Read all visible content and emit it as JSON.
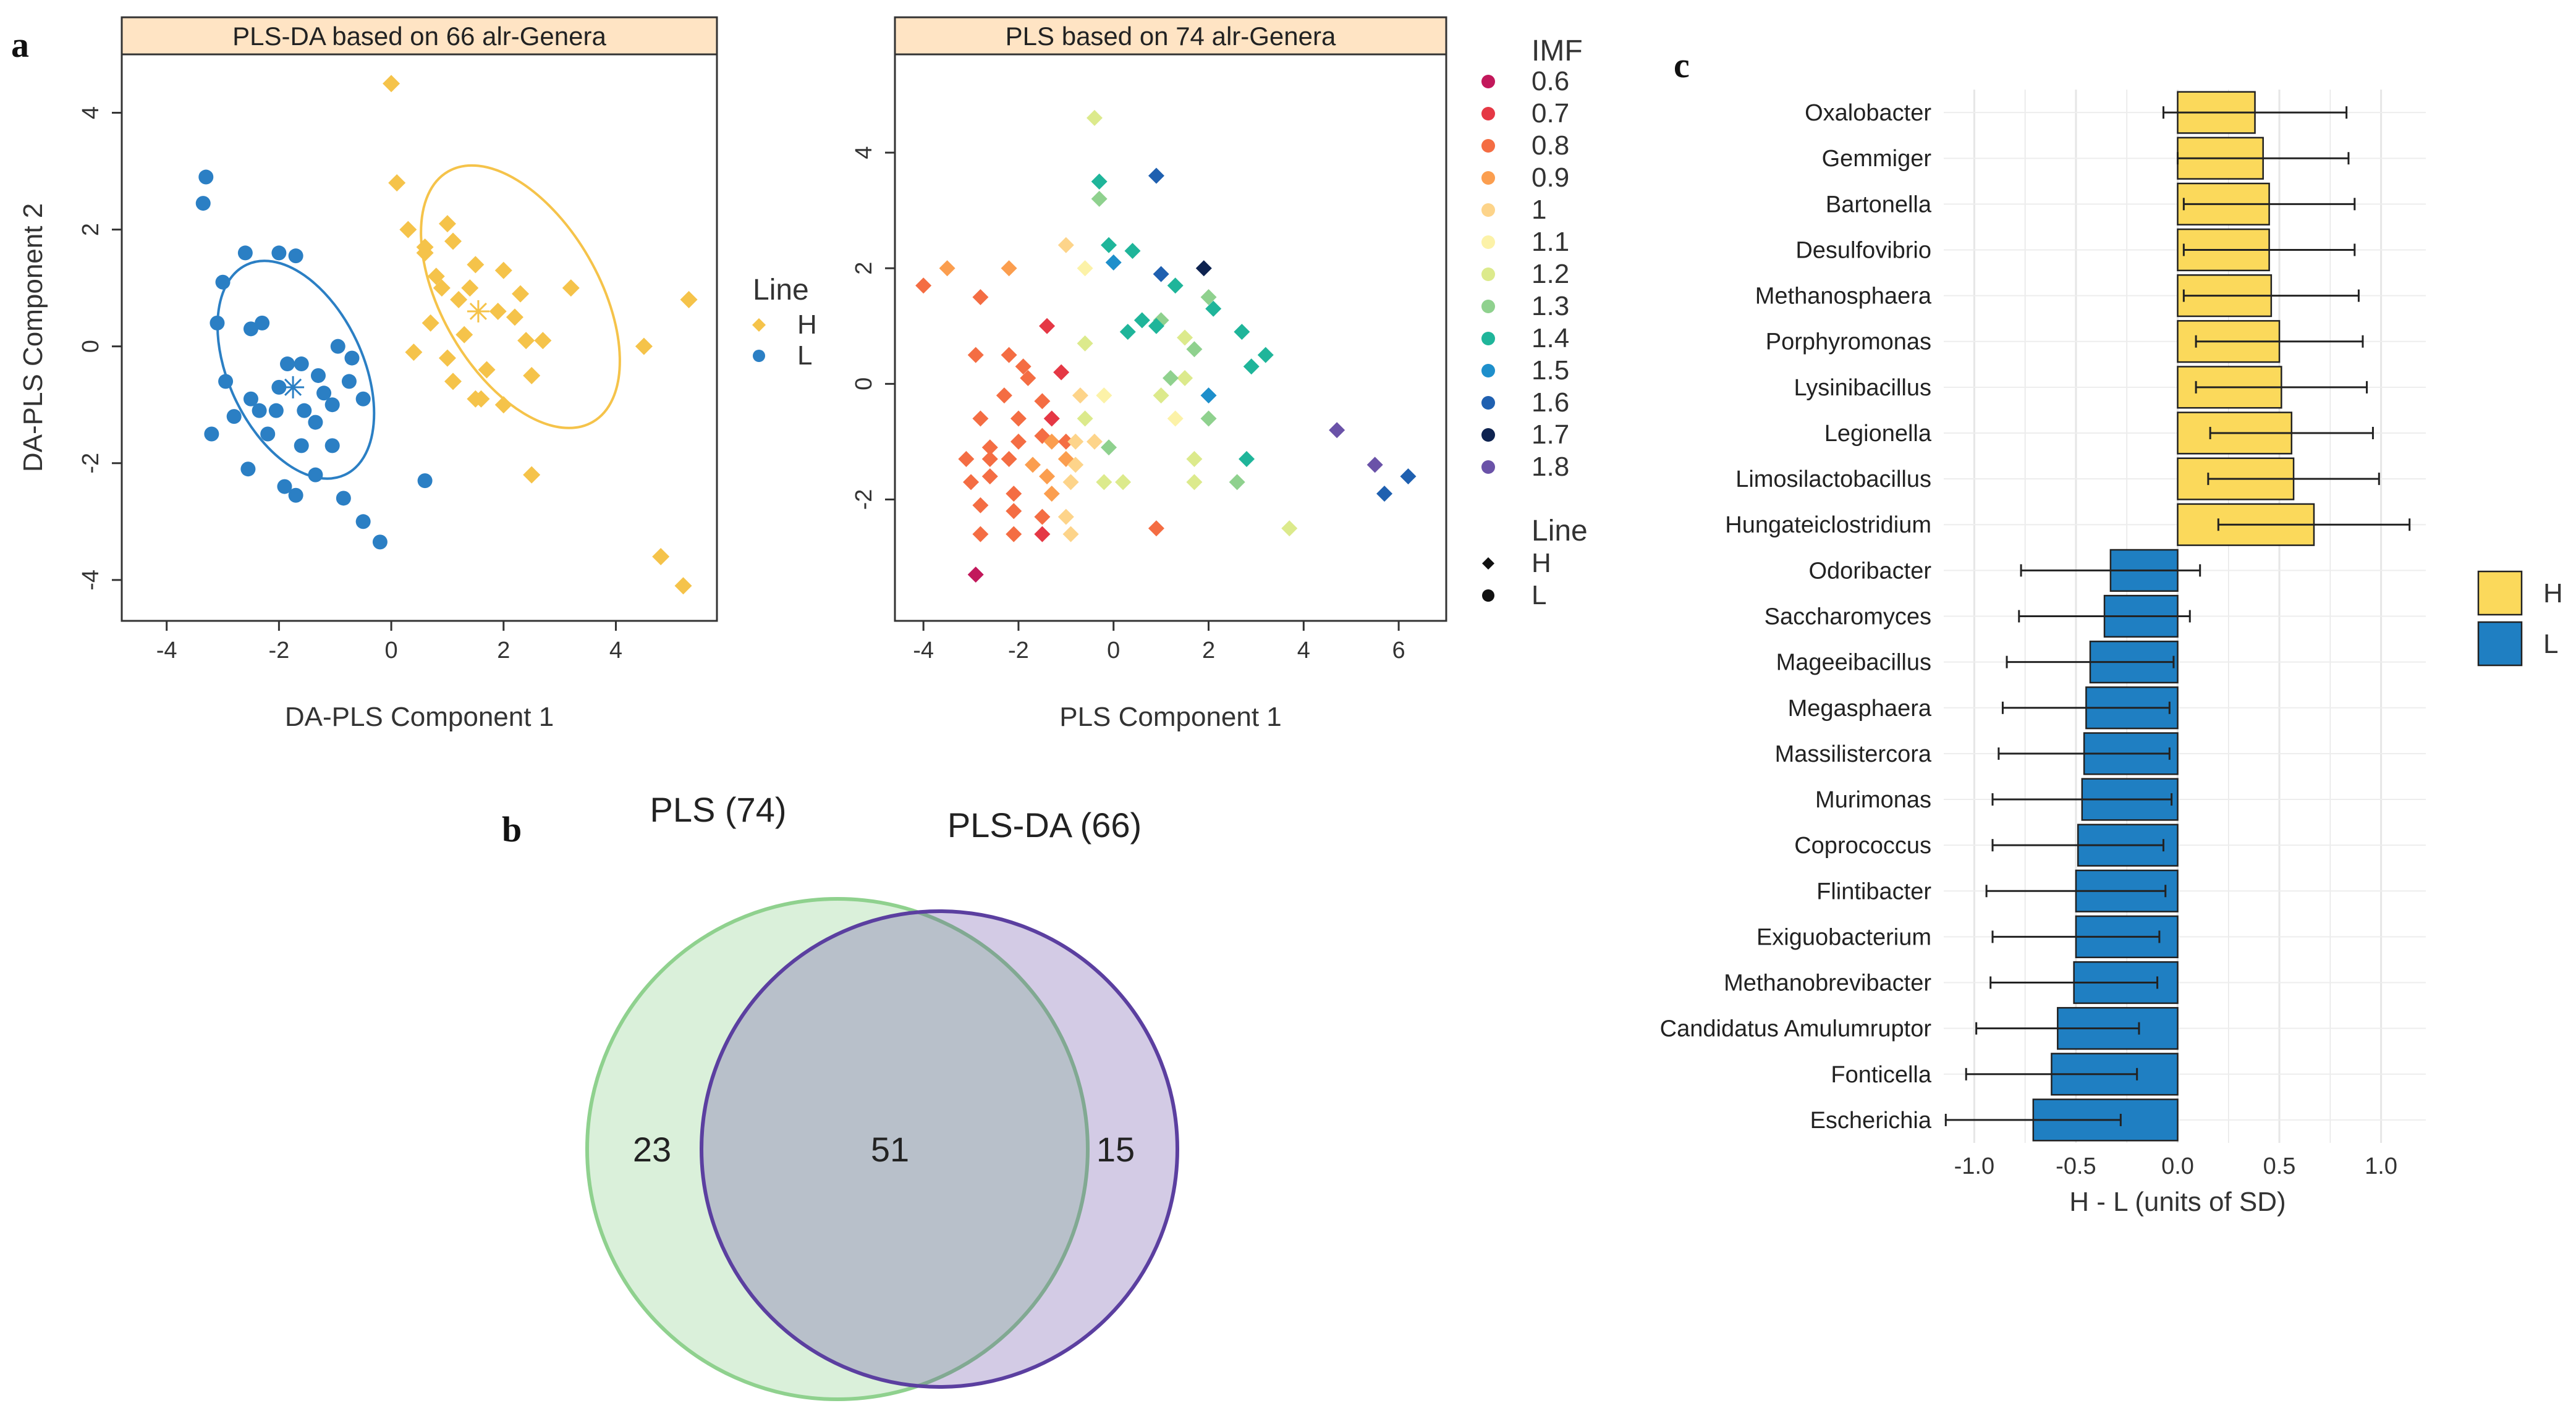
{
  "panel_letters": {
    "a": "a",
    "b": "b",
    "c": "c"
  },
  "chart_data": [
    {
      "type": "scatter",
      "strip_title": "PLS-DA based on 66 alr-Genera",
      "xlabel": "DA-PLS Component 1",
      "ylabel": "DA-PLS Component 2",
      "xlim": [
        -4.8,
        5.8
      ],
      "ylim": [
        -4.7,
        5.0
      ],
      "xticks": [
        -4,
        -2,
        0,
        2,
        4
      ],
      "yticks": [
        -4,
        -2,
        0,
        2,
        4
      ],
      "legend": {
        "title": "Line",
        "entries": [
          {
            "label": "H",
            "color": "#F5C34A",
            "shape": "diamond"
          },
          {
            "label": "L",
            "color": "#2B7FC4",
            "shape": "circle"
          }
        ]
      },
      "centroids": {
        "H": [
          1.55,
          0.6
        ],
        "L": [
          -1.75,
          -0.7
        ]
      },
      "ellipses": [
        {
          "group": "H",
          "center": [
            2.3,
            0.85
          ],
          "rx": 2.75,
          "ry": 5.05,
          "angle_deg": -30,
          "color": "#F5C34A"
        },
        {
          "group": "L",
          "center": [
            -1.7,
            -0.4
          ],
          "rx": 2.35,
          "ry": 4.05,
          "angle_deg": -25,
          "color": "#2B7FC4"
        }
      ],
      "series": [
        {
          "name": "H",
          "color": "#F5C34A",
          "points": [
            [
              0,
              4.5
            ],
            [
              0.1,
              2.8
            ],
            [
              1.0,
              2.1
            ],
            [
              0.6,
              1.7
            ],
            [
              1.5,
              1.4
            ],
            [
              1.1,
              1.8
            ],
            [
              2.0,
              1.3
            ],
            [
              0.9,
              1.0
            ],
            [
              1.2,
              0.8
            ],
            [
              2.2,
              0.5
            ],
            [
              3.2,
              1.0
            ],
            [
              1.9,
              0.6
            ],
            [
              0.7,
              0.4
            ],
            [
              1.3,
              0.2
            ],
            [
              2.4,
              0.1
            ],
            [
              0.4,
              -0.1
            ],
            [
              1.0,
              -0.2
            ],
            [
              1.7,
              -0.4
            ],
            [
              2.5,
              -0.5
            ],
            [
              1.6,
              -0.9
            ],
            [
              2.0,
              -1.0
            ],
            [
              1.5,
              -0.9
            ],
            [
              4.5,
              0.0
            ],
            [
              5.3,
              0.8
            ],
            [
              2.5,
              -2.2
            ],
            [
              4.8,
              -3.6
            ],
            [
              5.2,
              -4.1
            ],
            [
              0.3,
              2.0
            ],
            [
              0.8,
              1.2
            ],
            [
              1.4,
              1.0
            ],
            [
              2.3,
              0.9
            ],
            [
              2.7,
              0.1
            ],
            [
              1.1,
              -0.6
            ],
            [
              0.6,
              1.6
            ]
          ]
        },
        {
          "name": "L",
          "color": "#2B7FC4",
          "points": [
            [
              -3.3,
              2.9
            ],
            [
              -3.35,
              2.45
            ],
            [
              -2.6,
              1.6
            ],
            [
              -2.0,
              1.6
            ],
            [
              -1.7,
              1.55
            ],
            [
              -3.0,
              1.1
            ],
            [
              -3.1,
              0.4
            ],
            [
              -2.5,
              0.3
            ],
            [
              -2.3,
              0.4
            ],
            [
              -1.85,
              -0.3
            ],
            [
              -1.6,
              -0.3
            ],
            [
              -0.95,
              0.0
            ],
            [
              -0.7,
              -0.2
            ],
            [
              -1.3,
              -0.5
            ],
            [
              -2.0,
              -0.7
            ],
            [
              -2.5,
              -0.9
            ],
            [
              -2.95,
              -0.6
            ],
            [
              -2.35,
              -1.1
            ],
            [
              -2.05,
              -1.1
            ],
            [
              -1.55,
              -1.1
            ],
            [
              -1.05,
              -1.0
            ],
            [
              -0.75,
              -0.6
            ],
            [
              -0.5,
              -0.9
            ],
            [
              -1.35,
              -1.3
            ],
            [
              -1.05,
              -1.7
            ],
            [
              -1.6,
              -1.7
            ],
            [
              -2.2,
              -1.5
            ],
            [
              -3.2,
              -1.5
            ],
            [
              -2.55,
              -2.1
            ],
            [
              -1.9,
              -2.4
            ],
            [
              -1.35,
              -2.2
            ],
            [
              -0.85,
              -2.6
            ],
            [
              -1.7,
              -2.55
            ],
            [
              -0.5,
              -3.0
            ],
            [
              -0.2,
              -3.35
            ],
            [
              0.6,
              -2.3
            ],
            [
              -2.8,
              -1.2
            ],
            [
              -1.2,
              -0.8
            ]
          ]
        }
      ]
    },
    {
      "type": "scatter",
      "strip_title": "PLS based on 74 alr-Genera",
      "xlabel": "PLS Component 1",
      "ylabel": "",
      "xlim": [
        -4.6,
        7.0
      ],
      "ylim": [
        -4.1,
        5.7
      ],
      "xticks": [
        -4,
        -2,
        0,
        2,
        4,
        6
      ],
      "yticks": [
        -2,
        0,
        2,
        4
      ],
      "color_legend": {
        "title": "IMF",
        "entries": [
          {
            "label": "0.6",
            "color": "#C2185B"
          },
          {
            "label": "0.7",
            "color": "#E53845"
          },
          {
            "label": "0.8",
            "color": "#F46D43"
          },
          {
            "label": "0.9",
            "color": "#FB9E4F"
          },
          {
            "label": "1",
            "color": "#FDD48A"
          },
          {
            "label": "1.1",
            "color": "#FCF2A8"
          },
          {
            "label": "1.2",
            "color": "#DCEA8C"
          },
          {
            "label": "1.3",
            "color": "#8FD18E"
          },
          {
            "label": "1.4",
            "color": "#1FB59A"
          },
          {
            "label": "1.5",
            "color": "#1E8FCB"
          },
          {
            "label": "1.6",
            "color": "#1F60B0"
          },
          {
            "label": "1.7",
            "color": "#0E2350"
          },
          {
            "label": "1.8",
            "color": "#6A52A8"
          }
        ]
      },
      "shape_legend": {
        "title": "Line",
        "entries": [
          {
            "label": "H",
            "shape": "diamond"
          },
          {
            "label": "L",
            "shape": "circle"
          }
        ]
      },
      "points": [
        {
          "x": -0.4,
          "y": 4.6,
          "imf": "1.2"
        },
        {
          "x": 0.9,
          "y": 3.6,
          "imf": "1.6"
        },
        {
          "x": -0.3,
          "y": 3.5,
          "imf": "1.4"
        },
        {
          "x": -0.3,
          "y": 3.2,
          "imf": "1.3"
        },
        {
          "x": -0.1,
          "y": 2.4,
          "imf": "1.4"
        },
        {
          "x": 0.4,
          "y": 2.3,
          "imf": "1.4"
        },
        {
          "x": 0.0,
          "y": 2.1,
          "imf": "1.5"
        },
        {
          "x": 1.0,
          "y": 1.9,
          "imf": "1.6"
        },
        {
          "x": 1.3,
          "y": 1.7,
          "imf": "1.4"
        },
        {
          "x": 1.9,
          "y": 2.0,
          "imf": "1.7"
        },
        {
          "x": -1.0,
          "y": 2.4,
          "imf": "1"
        },
        {
          "x": -0.6,
          "y": 2.0,
          "imf": "1.1"
        },
        {
          "x": -2.2,
          "y": 2.0,
          "imf": "0.9"
        },
        {
          "x": -3.5,
          "y": 2.0,
          "imf": "0.9"
        },
        {
          "x": -4.0,
          "y": 1.7,
          "imf": "0.8"
        },
        {
          "x": -2.8,
          "y": 1.5,
          "imf": "0.8"
        },
        {
          "x": -1.4,
          "y": 1.0,
          "imf": "0.7"
        },
        {
          "x": 2.0,
          "y": 1.5,
          "imf": "1.3"
        },
        {
          "x": 2.1,
          "y": 1.3,
          "imf": "1.4"
        },
        {
          "x": 1.0,
          "y": 1.1,
          "imf": "1.3"
        },
        {
          "x": 0.9,
          "y": 1.0,
          "imf": "1.4"
        },
        {
          "x": 0.6,
          "y": 1.1,
          "imf": "1.4"
        },
        {
          "x": 0.3,
          "y": 0.9,
          "imf": "1.4"
        },
        {
          "x": 1.5,
          "y": 0.8,
          "imf": "1.2"
        },
        {
          "x": 1.7,
          "y": 0.6,
          "imf": "1.3"
        },
        {
          "x": 2.7,
          "y": 0.9,
          "imf": "1.4"
        },
        {
          "x": 3.2,
          "y": 0.5,
          "imf": "1.4"
        },
        {
          "x": 2.9,
          "y": 0.3,
          "imf": "1.4"
        },
        {
          "x": -0.6,
          "y": 0.7,
          "imf": "1.2"
        },
        {
          "x": -2.9,
          "y": 0.5,
          "imf": "0.8"
        },
        {
          "x": -2.2,
          "y": 0.5,
          "imf": "0.8"
        },
        {
          "x": -1.9,
          "y": 0.3,
          "imf": "0.8"
        },
        {
          "x": -1.1,
          "y": 0.2,
          "imf": "0.7"
        },
        {
          "x": -1.8,
          "y": 0.1,
          "imf": "0.8"
        },
        {
          "x": 1.5,
          "y": 0.1,
          "imf": "1.2"
        },
        {
          "x": 1.2,
          "y": 0.1,
          "imf": "1.3"
        },
        {
          "x": 2.0,
          "y": -0.2,
          "imf": "1.5"
        },
        {
          "x": 2.0,
          "y": -0.6,
          "imf": "1.3"
        },
        {
          "x": -2.3,
          "y": -0.2,
          "imf": "0.8"
        },
        {
          "x": -1.5,
          "y": -0.3,
          "imf": "0.8"
        },
        {
          "x": -0.7,
          "y": -0.2,
          "imf": "1"
        },
        {
          "x": -0.2,
          "y": -0.2,
          "imf": "1.1"
        },
        {
          "x": 1.0,
          "y": -0.2,
          "imf": "1.2"
        },
        {
          "x": 1.3,
          "y": -0.6,
          "imf": "1.1"
        },
        {
          "x": -2.8,
          "y": -0.6,
          "imf": "0.8"
        },
        {
          "x": -2.0,
          "y": -0.6,
          "imf": "0.8"
        },
        {
          "x": -1.3,
          "y": -0.6,
          "imf": "0.7"
        },
        {
          "x": -1.5,
          "y": -0.9,
          "imf": "0.8"
        },
        {
          "x": -0.6,
          "y": -0.6,
          "imf": "1.2"
        },
        {
          "x": -2.6,
          "y": -1.1,
          "imf": "0.8"
        },
        {
          "x": -2.0,
          "y": -1.0,
          "imf": "0.8"
        },
        {
          "x": -1.3,
          "y": -1.0,
          "imf": "0.9"
        },
        {
          "x": -1.0,
          "y": -1.0,
          "imf": "0.8"
        },
        {
          "x": -0.8,
          "y": -1.0,
          "imf": "1"
        },
        {
          "x": -0.4,
          "y": -1.0,
          "imf": "1"
        },
        {
          "x": -0.1,
          "y": -1.1,
          "imf": "1.3"
        },
        {
          "x": -2.2,
          "y": -1.3,
          "imf": "0.8"
        },
        {
          "x": -1.0,
          "y": -1.3,
          "imf": "0.9"
        },
        {
          "x": -0.8,
          "y": -1.4,
          "imf": "1"
        },
        {
          "x": -3.1,
          "y": -1.3,
          "imf": "0.8"
        },
        {
          "x": -2.6,
          "y": -1.3,
          "imf": "0.8"
        },
        {
          "x": -1.7,
          "y": -1.4,
          "imf": "0.9"
        },
        {
          "x": -1.4,
          "y": -1.6,
          "imf": "0.9"
        },
        {
          "x": 1.7,
          "y": -1.3,
          "imf": "1.2"
        },
        {
          "x": 2.8,
          "y": -1.3,
          "imf": "1.4"
        },
        {
          "x": -3.0,
          "y": -1.7,
          "imf": "0.8"
        },
        {
          "x": -2.6,
          "y": -1.6,
          "imf": "0.8"
        },
        {
          "x": -2.1,
          "y": -1.9,
          "imf": "0.8"
        },
        {
          "x": -1.3,
          "y": -1.9,
          "imf": "0.9"
        },
        {
          "x": -0.9,
          "y": -1.7,
          "imf": "1"
        },
        {
          "x": -0.2,
          "y": -1.7,
          "imf": "1.2"
        },
        {
          "x": 0.2,
          "y": -1.7,
          "imf": "1.2"
        },
        {
          "x": 1.7,
          "y": -1.7,
          "imf": "1.2"
        },
        {
          "x": 2.6,
          "y": -1.7,
          "imf": "1.3"
        },
        {
          "x": -2.8,
          "y": -2.1,
          "imf": "0.8"
        },
        {
          "x": -2.1,
          "y": -2.2,
          "imf": "0.8"
        },
        {
          "x": -1.5,
          "y": -2.3,
          "imf": "0.8"
        },
        {
          "x": -1.5,
          "y": -2.6,
          "imf": "0.7"
        },
        {
          "x": -1.0,
          "y": -2.3,
          "imf": "1"
        },
        {
          "x": -2.1,
          "y": -2.6,
          "imf": "0.8"
        },
        {
          "x": -2.8,
          "y": -2.6,
          "imf": "0.8"
        },
        {
          "x": -0.9,
          "y": -2.6,
          "imf": "1"
        },
        {
          "x": 0.9,
          "y": -2.5,
          "imf": "0.8"
        },
        {
          "x": 3.7,
          "y": -2.5,
          "imf": "1.2"
        },
        {
          "x": -2.9,
          "y": -3.3,
          "imf": "0.6"
        },
        {
          "x": 4.7,
          "y": -0.8,
          "imf": "1.8"
        },
        {
          "x": 5.5,
          "y": -1.4,
          "imf": "1.8"
        },
        {
          "x": 5.7,
          "y": -1.9,
          "imf": "1.6"
        },
        {
          "x": 6.2,
          "y": -1.6,
          "imf": "1.6"
        }
      ]
    },
    {
      "type": "bar",
      "orientation": "horizontal",
      "xlabel": "H - L (units of SD)",
      "xlim": [
        -1.15,
        1.22
      ],
      "xticks": [
        -1.0,
        -0.5,
        0.0,
        0.5,
        1.0
      ],
      "xtick_labels": [
        "-1.0",
        "-0.5",
        "0.0",
        "0.5",
        "1.0"
      ],
      "legend": {
        "entries": [
          {
            "label": "H",
            "color": "#FBD95B"
          },
          {
            "label": "L",
            "color": "#1F7FC2"
          }
        ]
      },
      "categories": [
        "Oxalobacter",
        "Gemmiger",
        "Bartonella",
        "Desulfovibrio",
        "Methanosphaera",
        "Porphyromonas",
        "Lysinibacillus",
        "Legionella",
        "Limosilactobacillus",
        "Hungateiclostridium",
        "Odoribacter",
        "Saccharomyces",
        "Mageeibacillus",
        "Megasphaera",
        "Massilistercora",
        "Murimonas",
        "Coprococcus",
        "Flintibacter",
        "Exiguobacterium",
        "Methanobrevibacter",
        "Candidatus Amulumruptor",
        "Fonticella",
        "Escherichia"
      ],
      "values": [
        0.38,
        0.42,
        0.45,
        0.45,
        0.46,
        0.5,
        0.51,
        0.56,
        0.57,
        0.67,
        -0.33,
        -0.36,
        -0.43,
        -0.45,
        -0.46,
        -0.47,
        -0.49,
        -0.5,
        -0.5,
        -0.51,
        -0.59,
        -0.62,
        -0.71
      ],
      "error": [
        0.45,
        0.42,
        0.42,
        0.42,
        0.43,
        0.41,
        0.42,
        0.4,
        0.42,
        0.47,
        0.44,
        0.42,
        0.41,
        0.41,
        0.42,
        0.44,
        0.42,
        0.44,
        0.41,
        0.41,
        0.4,
        0.42,
        0.43
      ],
      "group": [
        "H",
        "H",
        "H",
        "H",
        "H",
        "H",
        "H",
        "H",
        "H",
        "H",
        "L",
        "L",
        "L",
        "L",
        "L",
        "L",
        "L",
        "L",
        "L",
        "L",
        "L",
        "L",
        "L"
      ]
    },
    {
      "type": "venn",
      "sets": [
        {
          "label": "PLS (74)",
          "color": "#8FD18E"
        },
        {
          "label": "PLS-DA (66)",
          "color": "#5B3FA0"
        }
      ],
      "only_first": "23",
      "intersection": "51",
      "only_second": "15"
    }
  ]
}
